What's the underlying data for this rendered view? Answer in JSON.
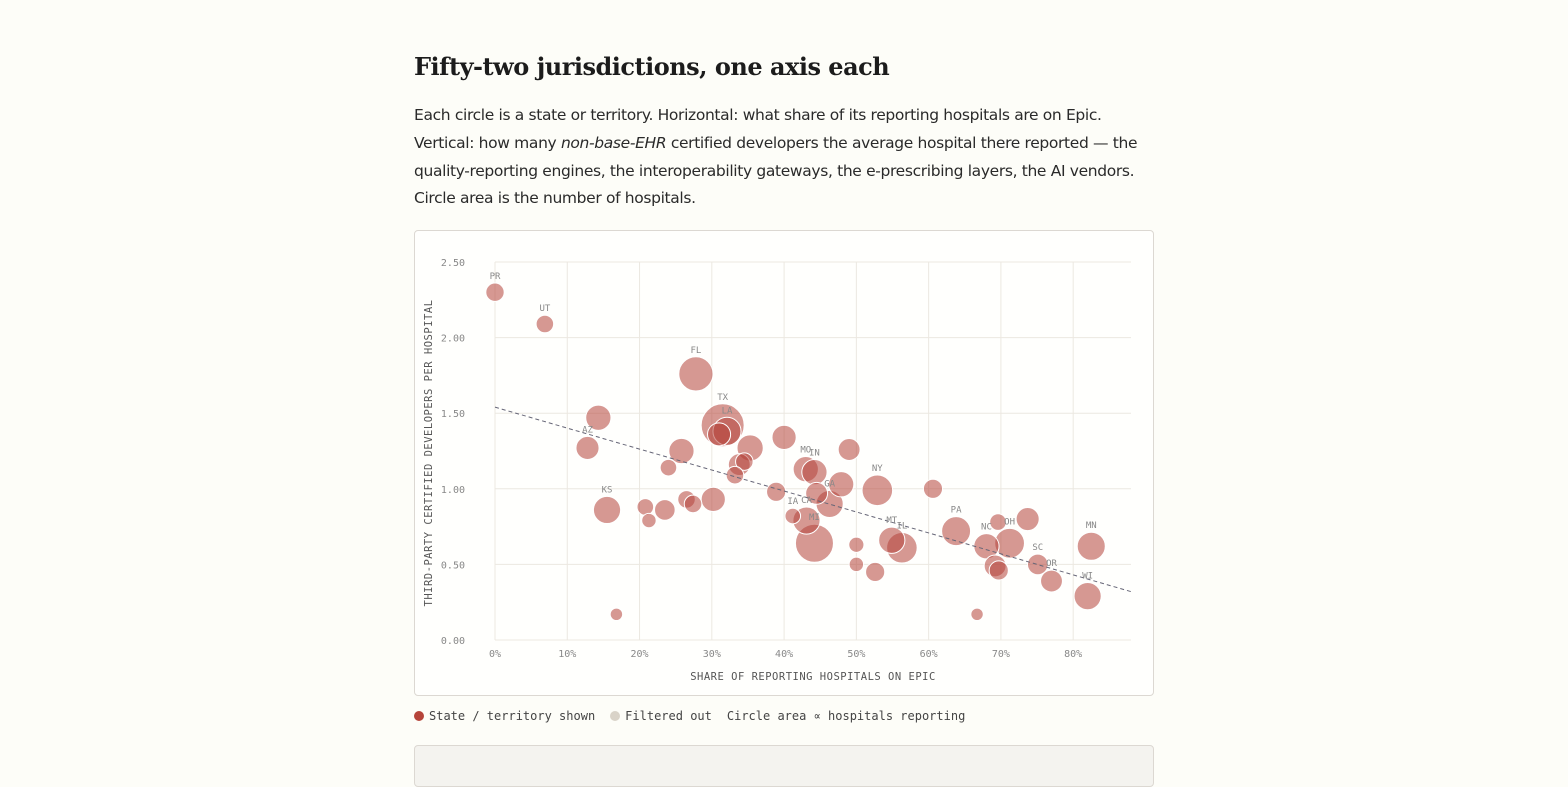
{
  "heading": "Fifty-two jurisdictions, one axis each",
  "intro": {
    "line1": "Each circle is a state or territory. Horizontal: what share of its reporting hospitals are on Epic.",
    "line2_pre": "Vertical: how many ",
    "line2_em": "non-base-EHR",
    "line2_post": " certified developers the average hospital there reported — the",
    "line3": "quality-reporting engines, the interoperability gateways, the e-prescribing layers, the AI vendors.",
    "line4": "Circle area is the number of hospitals."
  },
  "legend": {
    "shown": "State / territory shown",
    "filtered": "Filtered out",
    "note": "Circle area ∝ hospitals reporting"
  },
  "colors": {
    "shown": "#b5443a",
    "filtered": "#d9d3c8",
    "trend": "#666677"
  },
  "chart_data": {
    "type": "scatter",
    "xlabel": "SHARE OF REPORTING HOSPITALS ON EPIC",
    "ylabel": "THIRD-PARTY CERTIFIED DEVELOPERS PER HOSPITAL",
    "xlim": [
      0,
      88
    ],
    "ylim": [
      0,
      2.5
    ],
    "xticks": [
      0,
      10,
      20,
      30,
      40,
      50,
      60,
      70,
      80
    ],
    "xtick_labels": [
      "0%",
      "10%",
      "20%",
      "30%",
      "40%",
      "50%",
      "60%",
      "70%",
      "80%"
    ],
    "yticks": [
      0,
      0.5,
      1.0,
      1.5,
      2.0,
      2.5
    ],
    "ytick_labels": [
      "0.00",
      "0.50",
      "1.00",
      "1.50",
      "2.00",
      "2.50"
    ],
    "grid": true,
    "trend": {
      "x": [
        0,
        88
      ],
      "y": [
        1.54,
        0.32
      ]
    },
    "points": [
      {
        "label": "PR",
        "x": 0.0,
        "y": 2.3,
        "n": 35
      },
      {
        "label": "UT",
        "x": 6.9,
        "y": 2.09,
        "n": 30
      },
      {
        "label": "FL",
        "x": 27.8,
        "y": 1.76,
        "n": 200
      },
      {
        "label": "TX",
        "x": 31.5,
        "y": 1.42,
        "n": 350
      },
      {
        "label": "LA",
        "x": 32.1,
        "y": 1.38,
        "n": 120
      },
      {
        "label": "",
        "x": 31.0,
        "y": 1.36,
        "n": 70
      },
      {
        "label": "AZ",
        "x": 12.8,
        "y": 1.27,
        "n": 70
      },
      {
        "label": "",
        "x": 14.3,
        "y": 1.47,
        "n": 90
      },
      {
        "label": "",
        "x": 25.8,
        "y": 1.25,
        "n": 90
      },
      {
        "label": "",
        "x": 24.0,
        "y": 1.14,
        "n": 25
      },
      {
        "label": "",
        "x": 35.3,
        "y": 1.27,
        "n": 100
      },
      {
        "label": "",
        "x": 34.5,
        "y": 1.18,
        "n": 30
      },
      {
        "label": "",
        "x": 33.8,
        "y": 1.16,
        "n": 60
      },
      {
        "label": "",
        "x": 33.2,
        "y": 1.09,
        "n": 30
      },
      {
        "label": "",
        "x": 40.0,
        "y": 1.34,
        "n": 80
      },
      {
        "label": "",
        "x": 49.0,
        "y": 1.26,
        "n": 60
      },
      {
        "label": "MO",
        "x": 43.0,
        "y": 1.13,
        "n": 90
      },
      {
        "label": "IN",
        "x": 44.2,
        "y": 1.11,
        "n": 90
      },
      {
        "label": "",
        "x": 47.9,
        "y": 1.03,
        "n": 90
      },
      {
        "label": "GA",
        "x": 46.3,
        "y": 0.9,
        "n": 110
      },
      {
        "label": "",
        "x": 44.5,
        "y": 0.97,
        "n": 60
      },
      {
        "label": "NY",
        "x": 52.9,
        "y": 0.99,
        "n": 150
      },
      {
        "label": "",
        "x": 60.6,
        "y": 1.0,
        "n": 40
      },
      {
        "label": "KS",
        "x": 15.5,
        "y": 0.86,
        "n": 110
      },
      {
        "label": "",
        "x": 20.8,
        "y": 0.88,
        "n": 25
      },
      {
        "label": "",
        "x": 21.3,
        "y": 0.79,
        "n": 15
      },
      {
        "label": "",
        "x": 23.5,
        "y": 0.86,
        "n": 50
      },
      {
        "label": "",
        "x": 26.5,
        "y": 0.93,
        "n": 30
      },
      {
        "label": "",
        "x": 27.4,
        "y": 0.9,
        "n": 30
      },
      {
        "label": "",
        "x": 30.2,
        "y": 0.93,
        "n": 80
      },
      {
        "label": "",
        "x": 38.9,
        "y": 0.98,
        "n": 40
      },
      {
        "label": "IA",
        "x": 41.2,
        "y": 0.82,
        "n": 20
      },
      {
        "label": "CA",
        "x": 43.1,
        "y": 0.79,
        "n": 110
      },
      {
        "label": "MI",
        "x": 44.2,
        "y": 0.64,
        "n": 260
      },
      {
        "label": "",
        "x": 50.0,
        "y": 0.63,
        "n": 18
      },
      {
        "label": "",
        "x": 50.0,
        "y": 0.5,
        "n": 15
      },
      {
        "label": "",
        "x": 52.6,
        "y": 0.45,
        "n": 40
      },
      {
        "label": "MT",
        "x": 54.9,
        "y": 0.66,
        "n": 100
      },
      {
        "label": "IL",
        "x": 56.3,
        "y": 0.61,
        "n": 150
      },
      {
        "label": "PA",
        "x": 63.8,
        "y": 0.72,
        "n": 130
      },
      {
        "label": "NC",
        "x": 68.0,
        "y": 0.62,
        "n": 90
      },
      {
        "label": "OH",
        "x": 71.2,
        "y": 0.64,
        "n": 140
      },
      {
        "label": "",
        "x": 69.6,
        "y": 0.78,
        "n": 25
      },
      {
        "label": "",
        "x": 73.7,
        "y": 0.8,
        "n": 70
      },
      {
        "label": "",
        "x": 69.2,
        "y": 0.49,
        "n": 60
      },
      {
        "label": "",
        "x": 69.7,
        "y": 0.46,
        "n": 40
      },
      {
        "label": "SC",
        "x": 75.1,
        "y": 0.5,
        "n": 50
      },
      {
        "label": "OR",
        "x": 77.0,
        "y": 0.39,
        "n": 60
      },
      {
        "label": "WI",
        "x": 82.0,
        "y": 0.29,
        "n": 110
      },
      {
        "label": "MN",
        "x": 82.5,
        "y": 0.62,
        "n": 120
      },
      {
        "label": "",
        "x": 16.8,
        "y": 0.17,
        "n": 8
      },
      {
        "label": "",
        "x": 66.7,
        "y": 0.17,
        "n": 8
      }
    ]
  }
}
